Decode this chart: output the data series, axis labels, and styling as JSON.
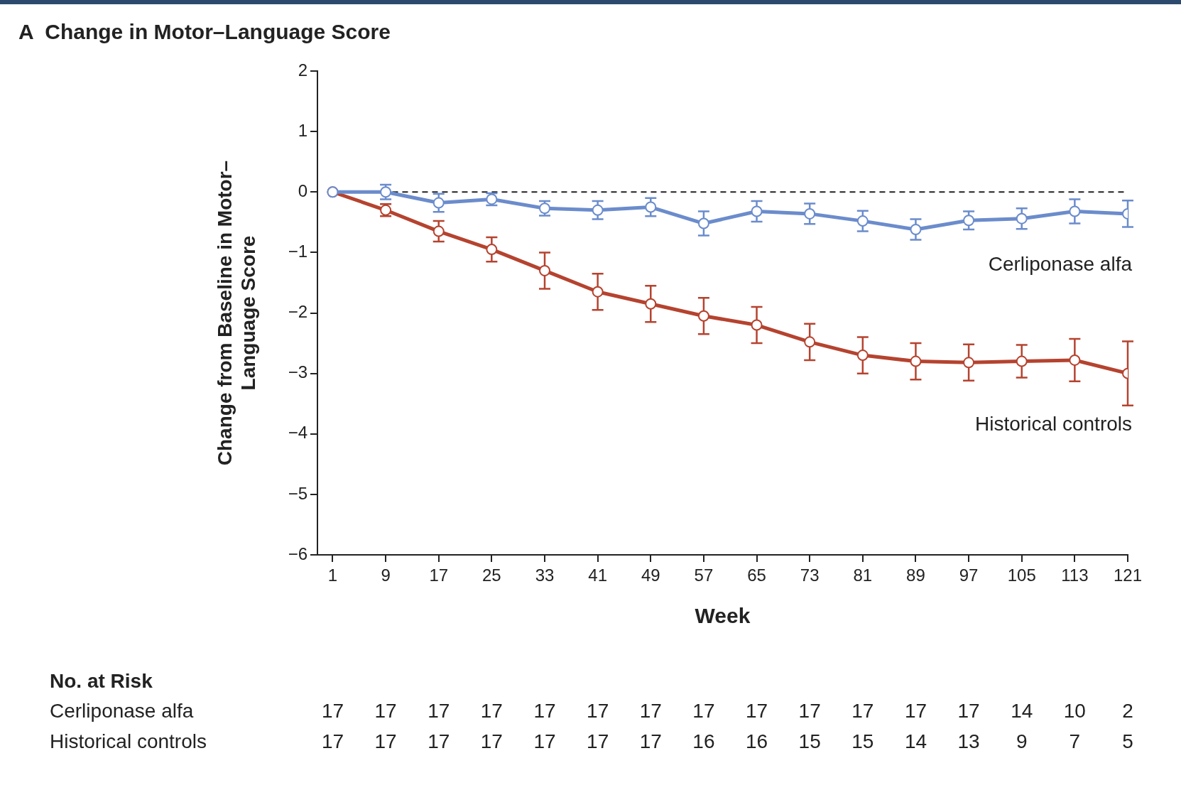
{
  "chart_data": {
    "type": "line",
    "title": "A  Change in Motor–Language Score",
    "xlabel": "Week",
    "ylabel": "Change from Baseline in Motor–Language Score",
    "x": [
      1,
      9,
      17,
      25,
      33,
      41,
      49,
      57,
      65,
      73,
      81,
      89,
      97,
      105,
      113,
      121
    ],
    "xlim": [
      -1.3,
      121
    ],
    "xticks": [
      1,
      9,
      17,
      25,
      33,
      41,
      49,
      57,
      65,
      73,
      81,
      89,
      97,
      105,
      113,
      121
    ],
    "ylim": [
      -6,
      2
    ],
    "yticks": [
      -6,
      -5,
      -4,
      -3,
      -2,
      -1,
      0,
      1,
      2
    ],
    "grid": false,
    "legend": false,
    "marker": "circle",
    "line_style": "solid",
    "series": [
      {
        "name": "Cerliponase alfa",
        "color": "#6b8ccc",
        "values": [
          0,
          0,
          -0.18,
          -0.12,
          -0.27,
          -0.3,
          -0.25,
          -0.52,
          -0.32,
          -0.36,
          -0.48,
          -0.62,
          -0.47,
          -0.44,
          -0.32,
          -0.36
        ],
        "errors": [
          null,
          0.12,
          0.15,
          0.1,
          0.12,
          0.15,
          0.15,
          0.2,
          0.17,
          0.17,
          0.17,
          0.17,
          0.15,
          0.17,
          0.2,
          0.22
        ]
      },
      {
        "name": "Historical controls",
        "color": "#b5432f",
        "values": [
          0,
          -0.3,
          -0.65,
          -0.95,
          -1.3,
          -1.65,
          -1.85,
          -2.05,
          -2.2,
          -2.48,
          -2.7,
          -2.8,
          -2.82,
          -2.8,
          -2.78,
          -3.0
        ],
        "errors": [
          null,
          0.1,
          0.17,
          0.2,
          0.3,
          0.3,
          0.3,
          0.3,
          0.3,
          0.3,
          0.3,
          0.3,
          0.3,
          0.27,
          0.35,
          0.53
        ]
      }
    ],
    "ref_lines": [
      {
        "axis": "y",
        "value": 0,
        "color": "#222222",
        "line_style": "dashed"
      }
    ],
    "annotations": [
      "No. at Risk",
      "Cerliponase alfa",
      "17 17 17 17 17 17 17 17 17 17 17 17 17 14 10 2",
      "Historical controls",
      "17 17 17 17 17 17 17 16 16 15 15 14 13 9 7 5"
    ]
  }
}
